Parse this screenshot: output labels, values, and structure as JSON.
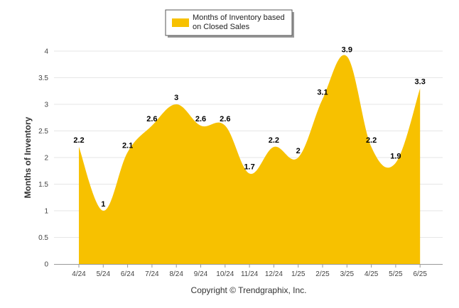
{
  "chart_data": {
    "type": "area",
    "categories": [
      "4/24",
      "5/24",
      "6/24",
      "7/24",
      "8/24",
      "9/24",
      "10/24",
      "11/24",
      "12/24",
      "1/25",
      "2/25",
      "3/25",
      "4/25",
      "5/25",
      "6/25"
    ],
    "series": [
      {
        "name": "Months of Inventory based on Closed Sales",
        "values": [
          2.2,
          1,
          2.1,
          2.6,
          3,
          2.6,
          2.6,
          1.7,
          2.2,
          2,
          3.1,
          3.9,
          2.2,
          1.9,
          3.3
        ]
      }
    ],
    "data_labels": [
      "2.2",
      "1",
      "2.1",
      "2.6",
      "3",
      "2.6",
      "2.6",
      "1.7",
      "2.2",
      "2",
      "3.1",
      "3.9",
      "2.2",
      "1.9",
      "3.3"
    ],
    "ylabel": "Months of Inventory",
    "ylim": [
      0,
      4
    ],
    "yticks": [
      "0",
      "0.5",
      "1",
      "1.5",
      "2",
      "2.5",
      "3",
      "3.5",
      "4"
    ],
    "grid": true,
    "legend_placement": "top-center",
    "series_color": "#F7C100",
    "credit": "Copyright © Trendgraphix, Inc."
  },
  "legend": {
    "line1": "Months of Inventory based",
    "line2": "on Closed Sales"
  }
}
